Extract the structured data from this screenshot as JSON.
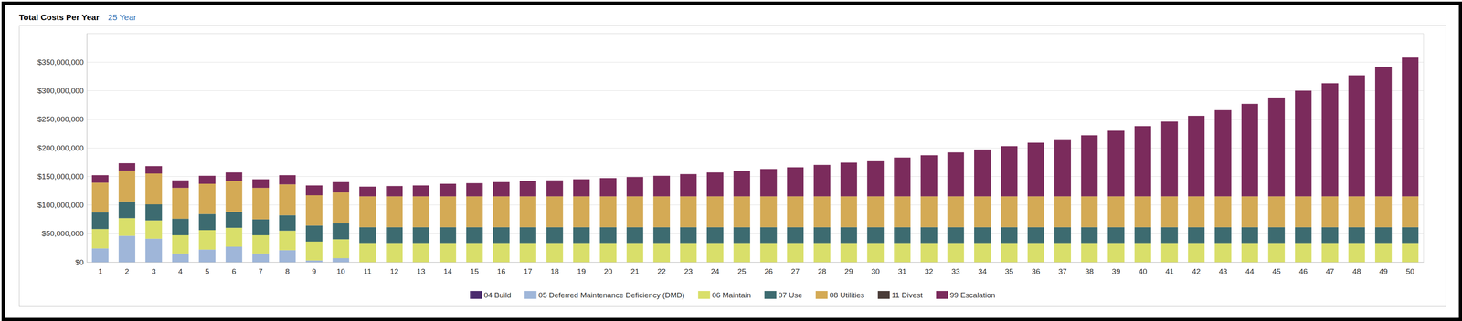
{
  "chart_data": {
    "type": "bar",
    "title": "Total Costs Per Year",
    "subtitle": "25 Year",
    "stacked": true,
    "grid": true,
    "legend": "bottom",
    "categories": [
      1,
      2,
      3,
      4,
      5,
      6,
      7,
      8,
      9,
      10,
      11,
      12,
      13,
      14,
      15,
      16,
      17,
      18,
      19,
      20,
      21,
      22,
      23,
      24,
      25,
      26,
      27,
      28,
      29,
      30,
      31,
      32,
      33,
      34,
      35,
      36,
      37,
      38,
      39,
      40,
      41,
      42,
      43,
      44,
      45,
      46,
      47,
      48,
      49,
      50
    ],
    "ylim": [
      0,
      400000000
    ],
    "yticks": [
      {
        "value": 0,
        "label": "$0"
      },
      {
        "value": 50000000,
        "label": "$50,000,000"
      },
      {
        "value": 100000000,
        "label": "$100,000,000"
      },
      {
        "value": 150000000,
        "label": "$150,000,000"
      },
      {
        "value": 200000000,
        "label": "$200,000,000"
      },
      {
        "value": 250000000,
        "label": "$250,000,000"
      },
      {
        "value": 300000000,
        "label": "$300,000,000"
      },
      {
        "value": 350000000,
        "label": "$350,000,000"
      }
    ],
    "series": [
      {
        "name": "04 Build",
        "color": "#4b2c6e",
        "values": [
          0,
          0,
          0,
          0,
          0,
          0,
          0,
          0,
          0,
          0,
          0,
          0,
          0,
          0,
          0,
          0,
          0,
          0,
          0,
          0,
          0,
          0,
          0,
          0,
          0,
          0,
          0,
          0,
          0,
          0,
          0,
          0,
          0,
          0,
          0,
          0,
          0,
          0,
          0,
          0,
          0,
          0,
          0,
          0,
          0,
          0,
          0,
          0,
          0,
          0
        ]
      },
      {
        "name": "05 Deferred Maintenance Deficiency (DMD)",
        "color": "#9fb6d9",
        "values": [
          24000000,
          46000000,
          41000000,
          15000000,
          22000000,
          27000000,
          15000000,
          21000000,
          3000000,
          7000000,
          0,
          0,
          0,
          0,
          0,
          0,
          0,
          0,
          0,
          0,
          0,
          0,
          0,
          0,
          0,
          0,
          0,
          0,
          0,
          0,
          0,
          0,
          0,
          0,
          0,
          0,
          0,
          0,
          0,
          0,
          0,
          0,
          0,
          0,
          0,
          0,
          0,
          0,
          0,
          0
        ]
      },
      {
        "name": "06 Maintain",
        "color": "#d9df6a",
        "values": [
          34000000,
          31000000,
          32000000,
          32000000,
          34000000,
          33000000,
          32000000,
          34000000,
          33000000,
          33000000,
          32000000,
          32000000,
          32000000,
          32000000,
          32000000,
          32000000,
          32000000,
          32000000,
          32000000,
          32000000,
          32000000,
          32000000,
          32000000,
          32000000,
          32000000,
          32000000,
          32000000,
          32000000,
          32000000,
          32000000,
          32000000,
          32000000,
          32000000,
          32000000,
          32000000,
          32000000,
          32000000,
          32000000,
          32000000,
          32000000,
          32000000,
          32000000,
          32000000,
          32000000,
          32000000,
          32000000,
          32000000,
          32000000,
          32000000,
          32000000
        ]
      },
      {
        "name": "07 Use",
        "color": "#3d6b70",
        "values": [
          29000000,
          29000000,
          28000000,
          29000000,
          28000000,
          28000000,
          28000000,
          27000000,
          28000000,
          28000000,
          29000000,
          29000000,
          29000000,
          29000000,
          29000000,
          29000000,
          29000000,
          29000000,
          29000000,
          29000000,
          29000000,
          29000000,
          29000000,
          29000000,
          29000000,
          29000000,
          29000000,
          29000000,
          29000000,
          29000000,
          29000000,
          29000000,
          29000000,
          29000000,
          29000000,
          29000000,
          29000000,
          29000000,
          29000000,
          29000000,
          29000000,
          29000000,
          29000000,
          29000000,
          29000000,
          29000000,
          29000000,
          29000000,
          29000000,
          29000000
        ]
      },
      {
        "name": "08 Utilities",
        "color": "#d4aa55",
        "values": [
          52000000,
          54000000,
          54000000,
          54000000,
          53000000,
          54000000,
          55000000,
          54000000,
          53000000,
          54000000,
          54000000,
          54000000,
          54000000,
          54000000,
          54000000,
          54000000,
          54000000,
          54000000,
          54000000,
          54000000,
          54000000,
          54000000,
          54000000,
          54000000,
          54000000,
          54000000,
          54000000,
          54000000,
          54000000,
          54000000,
          54000000,
          54000000,
          54000000,
          54000000,
          54000000,
          54000000,
          54000000,
          54000000,
          54000000,
          54000000,
          54000000,
          54000000,
          54000000,
          54000000,
          54000000,
          54000000,
          54000000,
          54000000,
          54000000,
          54000000
        ]
      },
      {
        "name": "11 Divest",
        "color": "#4a3c38",
        "values": [
          0,
          0,
          0,
          0,
          0,
          0,
          0,
          0,
          0,
          0,
          0,
          0,
          0,
          0,
          0,
          0,
          0,
          0,
          0,
          0,
          0,
          0,
          0,
          0,
          0,
          0,
          0,
          0,
          0,
          0,
          0,
          0,
          0,
          0,
          0,
          0,
          0,
          0,
          0,
          0,
          0,
          0,
          0,
          0,
          0,
          0,
          0,
          0,
          0,
          0
        ]
      },
      {
        "name": "99 Escalation",
        "color": "#7b2b5c",
        "values": [
          13000000,
          13000000,
          13000000,
          13000000,
          14000000,
          15000000,
          15000000,
          16000000,
          17000000,
          18000000,
          17000000,
          18000000,
          19000000,
          22000000,
          23000000,
          25000000,
          27000000,
          28000000,
          30000000,
          32000000,
          34000000,
          36000000,
          39000000,
          42000000,
          45000000,
          48000000,
          51000000,
          55000000,
          59000000,
          63000000,
          68000000,
          72000000,
          77000000,
          82000000,
          88000000,
          94000000,
          100000000,
          107000000,
          115000000,
          123000000,
          131000000,
          141000000,
          151000000,
          162000000,
          173000000,
          185000000,
          198000000,
          212000000,
          227000000,
          243000000
        ]
      }
    ]
  }
}
